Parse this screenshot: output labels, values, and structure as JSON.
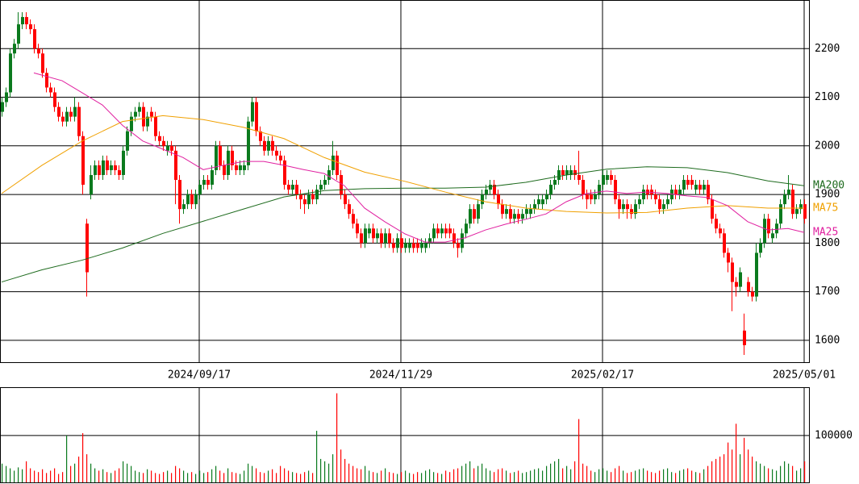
{
  "chart_data": {
    "type": "candlestick",
    "categories": [
      null,
      null,
      null,
      null,
      null,
      null,
      null,
      null,
      null,
      null,
      null,
      null,
      null,
      null,
      null,
      null,
      null,
      null,
      null,
      null,
      null,
      null,
      null,
      null,
      null,
      null,
      null,
      null,
      null,
      null,
      null,
      null,
      null,
      null,
      null,
      null,
      null,
      null,
      null,
      null,
      null,
      null,
      null,
      null,
      null,
      null,
      null,
      null,
      null,
      "2024/09/17",
      null,
      null,
      null,
      null,
      null,
      null,
      null,
      null,
      null,
      null,
      null,
      null,
      null,
      null,
      null,
      null,
      null,
      null,
      null,
      null,
      null,
      null,
      null,
      null,
      null,
      null,
      null,
      null,
      null,
      null,
      null,
      null,
      null,
      null,
      null,
      null,
      null,
      null,
      null,
      null,
      null,
      null,
      null,
      null,
      null,
      null,
      null,
      null,
      null,
      "2024/11/29",
      null,
      null,
      null,
      null,
      null,
      null,
      null,
      null,
      null,
      null,
      null,
      null,
      null,
      null,
      null,
      null,
      null,
      null,
      null,
      null,
      null,
      null,
      null,
      null,
      null,
      null,
      null,
      null,
      null,
      null,
      null,
      null,
      null,
      null,
      null,
      null,
      null,
      null,
      null,
      null,
      null,
      null,
      null,
      null,
      null,
      null,
      null,
      null,
      null,
      "2025/02/17",
      null,
      null,
      null,
      null,
      null,
      null,
      null,
      null,
      null,
      null,
      null,
      null,
      null,
      null,
      null,
      null,
      null,
      null,
      null,
      null,
      null,
      null,
      null,
      null,
      null,
      null,
      null,
      null,
      null,
      null,
      null,
      null,
      null,
      null,
      null,
      null,
      null,
      null,
      null,
      null,
      null,
      null,
      null,
      null,
      null,
      null,
      null,
      null,
      null,
      "2025/05/01"
    ],
    "open": [
      2070,
      2090,
      2110,
      2190,
      2210,
      2250,
      2265,
      2250,
      2240,
      2200,
      2190,
      2150,
      2120,
      2110,
      2080,
      2060,
      2050,
      2070,
      2060,
      2080,
      2020,
      1840,
      1900,
      1940,
      1960,
      1940,
      1970,
      1950,
      1960,
      1950,
      1940,
      1990,
      2030,
      2060,
      2070,
      2080,
      2040,
      2070,
      2060,
      2020,
      2010,
      1990,
      2000,
      1990,
      1930,
      1870,
      1880,
      1900,
      1880,
      1900,
      1920,
      1930,
      1920,
      1950,
      2000,
      1960,
      1940,
      1990,
      1960,
      1950,
      1950,
      1960,
      2050,
      2090,
      2030,
      2010,
      1990,
      2010,
      1990,
      1980,
      1970,
      1920,
      1910,
      1920,
      1900,
      1890,
      1880,
      1900,
      1890,
      1910,
      1920,
      1930,
      1950,
      1980,
      1940,
      1900,
      1880,
      1860,
      1840,
      1820,
      1800,
      1820,
      1830,
      1810,
      1820,
      1800,
      1820,
      1800,
      1790,
      1810,
      1790,
      1790,
      1800,
      1800,
      1790,
      1790,
      1800,
      1810,
      1830,
      1820,
      1830,
      1830,
      1820,
      1800,
      1790,
      1820,
      1840,
      1870,
      1850,
      1880,
      1900,
      1910,
      1920,
      1900,
      1880,
      1860,
      1870,
      1850,
      1860,
      1850,
      1860,
      1860,
      1870,
      1880,
      1880,
      1890,
      1900,
      1920,
      1930,
      1950,
      1940,
      1940,
      1950,
      1940,
      1930,
      1900,
      1900,
      1890,
      1900,
      1920,
      1930,
      1940,
      1930,
      1890,
      1870,
      1880,
      1870,
      1860,
      1880,
      1890,
      1910,
      1910,
      1900,
      1890,
      1870,
      1880,
      1890,
      1910,
      1900,
      1910,
      1930,
      1930,
      1910,
      1920,
      1910,
      1920,
      1890,
      1850,
      1830,
      1820,
      1780,
      1760,
      1720,
      1710,
      1620,
      1720,
      1700,
      1690,
      1780,
      1800,
      1850,
      1810,
      1820,
      1840,
      1880,
      1900,
      1910,
      1860,
      1870,
      1880
    ],
    "high": [
      2100,
      2120,
      2200,
      2220,
      2275,
      2275,
      2275,
      2260,
      2250,
      2210,
      2200,
      2160,
      2130,
      2120,
      2090,
      2070,
      2080,
      2080,
      2100,
      2090,
      2030,
      1850,
      1960,
      1970,
      1970,
      1980,
      1980,
      1970,
      1970,
      1960,
      2000,
      2040,
      2070,
      2080,
      2090,
      2090,
      2070,
      2080,
      2070,
      2030,
      2020,
      2010,
      2010,
      2000,
      1940,
      1890,
      1910,
      1910,
      1910,
      1930,
      1940,
      1940,
      1960,
      2010,
      2010,
      1970,
      2000,
      2000,
      1970,
      1970,
      1970,
      2060,
      2100,
      2100,
      2040,
      2020,
      2020,
      2020,
      2000,
      1990,
      1980,
      1930,
      1930,
      1930,
      1910,
      1900,
      1910,
      1910,
      1920,
      1930,
      1940,
      1960,
      2010,
      1990,
      1950,
      1910,
      1890,
      1870,
      1850,
      1830,
      1840,
      1840,
      1840,
      1830,
      1830,
      1830,
      1830,
      1810,
      1820,
      1820,
      1810,
      1810,
      1810,
      1810,
      1810,
      1810,
      1820,
      1840,
      1840,
      1840,
      1840,
      1840,
      1830,
      1810,
      1830,
      1850,
      1880,
      1880,
      1890,
      1910,
      1920,
      1930,
      1930,
      1910,
      1890,
      1880,
      1880,
      1870,
      1870,
      1870,
      1880,
      1880,
      1890,
      1900,
      1900,
      1910,
      1930,
      1940,
      1960,
      1960,
      1960,
      1960,
      1960,
      1990,
      1940,
      1910,
      1910,
      1910,
      1930,
      1950,
      1950,
      1950,
      1940,
      1900,
      1890,
      1890,
      1880,
      1890,
      1900,
      1920,
      1920,
      1920,
      1910,
      1900,
      1890,
      1900,
      1920,
      1920,
      1920,
      1940,
      1940,
      1940,
      1930,
      1930,
      1930,
      1930,
      1900,
      1860,
      1840,
      1830,
      1790,
      1770,
      1730,
      1750,
      1655,
      1730,
      1710,
      1800,
      1810,
      1860,
      1860,
      1830,
      1850,
      1890,
      1910,
      1940,
      1920,
      1880,
      1890,
      1890
    ],
    "low": [
      2060,
      2080,
      2100,
      2180,
      2200,
      2240,
      2240,
      2230,
      2190,
      2180,
      2140,
      2110,
      2100,
      2070,
      2050,
      2040,
      2040,
      2050,
      2050,
      2010,
      1900,
      1690,
      1890,
      1930,
      1930,
      1930,
      1940,
      1940,
      1940,
      1930,
      1930,
      1980,
      2020,
      2050,
      2060,
      2030,
      2030,
      2050,
      2010,
      2000,
      1990,
      1980,
      1980,
      1880,
      1840,
      1860,
      1870,
      1870,
      1870,
      1890,
      1910,
      1910,
      1910,
      1940,
      1950,
      1930,
      1930,
      1950,
      1940,
      1940,
      1940,
      1950,
      2040,
      2020,
      2000,
      1980,
      1980,
      1980,
      1970,
      1960,
      1910,
      1900,
      1900,
      1890,
      1870,
      1860,
      1870,
      1880,
      1880,
      1900,
      1910,
      1920,
      1940,
      1930,
      1890,
      1870,
      1850,
      1830,
      1810,
      1790,
      1790,
      1810,
      1800,
      1800,
      1790,
      1790,
      1790,
      1780,
      1780,
      1780,
      1780,
      1780,
      1780,
      1780,
      1780,
      1780,
      1790,
      1800,
      1810,
      1810,
      1810,
      1810,
      1790,
      1770,
      1780,
      1810,
      1830,
      1840,
      1840,
      1870,
      1890,
      1900,
      1890,
      1870,
      1850,
      1850,
      1840,
      1840,
      1840,
      1840,
      1850,
      1850,
      1860,
      1870,
      1870,
      1880,
      1890,
      1910,
      1920,
      1930,
      1930,
      1930,
      1930,
      1920,
      1890,
      1870,
      1880,
      1880,
      1890,
      1910,
      1920,
      1920,
      1880,
      1850,
      1860,
      1850,
      1850,
      1850,
      1870,
      1880,
      1890,
      1890,
      1880,
      1860,
      1860,
      1870,
      1880,
      1890,
      1890,
      1900,
      1910,
      1910,
      1900,
      1900,
      1900,
      1880,
      1840,
      1820,
      1810,
      1770,
      1740,
      1660,
      1690,
      1700,
      1570,
      1690,
      1680,
      1680,
      1770,
      1790,
      1810,
      1800,
      1810,
      1830,
      1870,
      1890,
      1850,
      1850,
      1860,
      1840
    ],
    "close": [
      2090,
      2110,
      2190,
      2210,
      2250,
      2265,
      2250,
      2240,
      2200,
      2190,
      2150,
      2120,
      2110,
      2080,
      2060,
      2050,
      2070,
      2060,
      2080,
      2020,
      1920,
      1740,
      1940,
      1960,
      1940,
      1970,
      1950,
      1960,
      1950,
      1940,
      1990,
      2030,
      2060,
      2070,
      2080,
      2040,
      2060,
      2060,
      2020,
      2010,
      2000,
      2000,
      1990,
      1930,
      1870,
      1880,
      1900,
      1880,
      1900,
      1920,
      1930,
      1920,
      1950,
      2000,
      1960,
      1940,
      1990,
      1960,
      1950,
      1960,
      1960,
      2050,
      2090,
      2030,
      2010,
      1990,
      2010,
      1990,
      1980,
      1970,
      1920,
      1910,
      1920,
      1900,
      1890,
      1880,
      1900,
      1890,
      1910,
      1920,
      1930,
      1950,
      1980,
      1940,
      1900,
      1880,
      1860,
      1840,
      1820,
      1800,
      1830,
      1830,
      1810,
      1820,
      1800,
      1820,
      1800,
      1790,
      1810,
      1790,
      1800,
      1800,
      1790,
      1790,
      1800,
      1800,
      1810,
      1830,
      1820,
      1830,
      1820,
      1820,
      1800,
      1790,
      1820,
      1840,
      1870,
      1850,
      1880,
      1900,
      1910,
      1920,
      1900,
      1880,
      1860,
      1870,
      1850,
      1860,
      1850,
      1860,
      1870,
      1870,
      1880,
      1890,
      1890,
      1900,
      1920,
      1930,
      1950,
      1940,
      1950,
      1950,
      1940,
      1930,
      1900,
      1890,
      1890,
      1900,
      1920,
      1940,
      1940,
      1930,
      1890,
      1870,
      1880,
      1870,
      1860,
      1880,
      1890,
      1910,
      1900,
      1900,
      1890,
      1870,
      1880,
      1890,
      1910,
      1900,
      1910,
      1930,
      1920,
      1920,
      1920,
      1910,
      1920,
      1890,
      1850,
      1830,
      1820,
      1780,
      1760,
      1720,
      1710,
      1740,
      1590,
      1700,
      1690,
      1780,
      1800,
      1850,
      1820,
      1820,
      1840,
      1880,
      1900,
      1910,
      1860,
      1870,
      1880,
      1850
    ],
    "up_color": "#0b7a1e",
    "down_color": "#ff0000",
    "ylim": [
      1555,
      2300
    ],
    "yticks": [
      1600,
      1700,
      1800,
      1900,
      2000,
      2100,
      2200
    ],
    "grid": true,
    "series": [
      {
        "name": "MA200",
        "color": "#1e6b1e",
        "x": [
          0,
          10,
          20,
          30,
          40,
          50,
          60,
          70,
          80,
          90,
          100,
          110,
          120,
          130,
          140,
          150,
          160,
          170,
          180,
          190,
          199
        ],
        "values": [
          1720,
          1745,
          1765,
          1790,
          1820,
          1845,
          1870,
          1895,
          1908,
          1912,
          1913,
          1913,
          1915,
          1925,
          1940,
          1952,
          1957,
          1955,
          1945,
          1928,
          1918
        ]
      },
      {
        "name": "MA75",
        "color": "#f0a000",
        "x": [
          0,
          10,
          20,
          30,
          40,
          50,
          60,
          70,
          80,
          90,
          100,
          110,
          120,
          130,
          140,
          150,
          160,
          170,
          180,
          190,
          199
        ],
        "values": [
          1902,
          1960,
          2010,
          2050,
          2062,
          2054,
          2038,
          2015,
          1976,
          1946,
          1927,
          1905,
          1885,
          1872,
          1865,
          1862,
          1863,
          1872,
          1877,
          1872,
          1872
        ]
      },
      {
        "name": "MA25",
        "color": "#e020a0",
        "x": [
          8,
          15,
          20,
          25,
          30,
          35,
          40,
          45,
          50,
          55,
          60,
          65,
          70,
          75,
          80,
          85,
          90,
          95,
          100,
          105,
          110,
          115,
          120,
          125,
          130,
          135,
          140,
          145,
          150,
          155,
          160,
          165,
          170,
          175,
          180,
          185,
          190,
          195,
          199
        ],
        "values": [
          2150,
          2134,
          2109,
          2084,
          2042,
          2010,
          1993,
          1976,
          1951,
          1960,
          1968,
          1968,
          1960,
          1951,
          1943,
          1918,
          1872,
          1844,
          1819,
          1802,
          1802,
          1811,
          1827,
          1839,
          1849,
          1860,
          1885,
          1902,
          1907,
          1902,
          1905,
          1902,
          1897,
          1894,
          1877,
          1844,
          1827,
          1830,
          1822
        ]
      }
    ],
    "volume": {
      "values": [
        40000,
        35000,
        30000,
        25000,
        32000,
        28000,
        45000,
        30000,
        25000,
        22000,
        28000,
        20000,
        25000,
        30000,
        18000,
        22000,
        100000,
        35000,
        40000,
        55000,
        105000,
        60000,
        40000,
        30000,
        25000,
        28000,
        22000,
        20000,
        25000,
        30000,
        45000,
        40000,
        35000,
        25000,
        22000,
        20000,
        28000,
        25000,
        20000,
        18000,
        22000,
        25000,
        20000,
        35000,
        30000,
        25000,
        20000,
        22000,
        18000,
        25000,
        20000,
        22000,
        28000,
        35000,
        25000,
        20000,
        30000,
        22000,
        20000,
        18000,
        25000,
        40000,
        35000,
        30000,
        22000,
        20000,
        25000,
        28000,
        20000,
        35000,
        30000,
        25000,
        22000,
        20000,
        18000,
        22000,
        25000,
        20000,
        110000,
        50000,
        45000,
        40000,
        60000,
        190000,
        70000,
        50000,
        40000,
        35000,
        30000,
        28000,
        35000,
        25000,
        22000,
        20000,
        25000,
        30000,
        22000,
        20000,
        18000,
        22000,
        25000,
        20000,
        18000,
        22000,
        20000,
        25000,
        28000,
        22000,
        20000,
        18000,
        25000,
        22000,
        28000,
        30000,
        35000,
        40000,
        45000,
        30000,
        35000,
        40000,
        30000,
        25000,
        22000,
        28000,
        30000,
        25000,
        20000,
        22000,
        25000,
        20000,
        22000,
        25000,
        28000,
        30000,
        25000,
        35000,
        40000,
        45000,
        50000,
        30000,
        35000,
        28000,
        45000,
        135000,
        40000,
        35000,
        25000,
        22000,
        28000,
        30000,
        25000,
        22000,
        30000,
        35000,
        25000,
        20000,
        22000,
        25000,
        28000,
        30000,
        25000,
        22000,
        20000,
        25000,
        28000,
        30000,
        22000,
        20000,
        25000,
        28000,
        30000,
        25000,
        22000,
        20000,
        28000,
        35000,
        45000,
        50000,
        55000,
        60000,
        85000,
        70000,
        125000,
        60000,
        95000,
        70000,
        55000,
        45000,
        40000,
        35000,
        30000,
        28000,
        25000,
        35000,
        45000,
        40000,
        35000,
        25000,
        30000,
        45000
      ],
      "ylim": [
        0,
        203000
      ],
      "yticks": [
        100000
      ]
    }
  }
}
